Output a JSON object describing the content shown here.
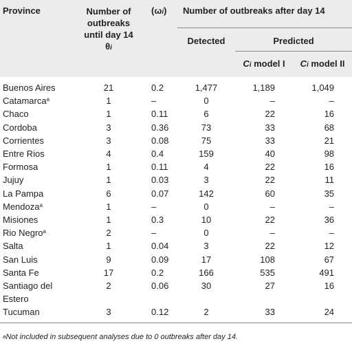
{
  "headers": {
    "province": "Province",
    "outbreaks_until": "Number of outbreaks until day 14",
    "theta": "θ",
    "theta_sub": "i",
    "omega": "(ω",
    "omega_sub": "i",
    "omega_close": ")",
    "after": "Number of outbreaks after day 14",
    "detected": "Detected",
    "predicted": "Predicted",
    "model1_c": "C",
    "model1_sub": "i",
    "model1_rest": " model I",
    "model2_c": "C",
    "model2_sub": "i",
    "model2_rest": " model II"
  },
  "rows": [
    {
      "province": "Buenos Aires",
      "sup": "",
      "until": "21",
      "omega": "0.2",
      "detected": "1,477",
      "m1": "1,189",
      "m2": "1,049"
    },
    {
      "province": "Catamarca",
      "sup": "a",
      "until": "1",
      "omega": "–",
      "detected": "0",
      "m1": "–",
      "m2": "–"
    },
    {
      "province": "Chaco",
      "sup": "",
      "until": "1",
      "omega": "0.11",
      "detected": "6",
      "m1": "22",
      "m2": "16"
    },
    {
      "province": "Cordoba",
      "sup": "",
      "until": "3",
      "omega": "0.36",
      "detected": "73",
      "m1": "33",
      "m2": "68"
    },
    {
      "province": "Corrientes",
      "sup": "",
      "until": "3",
      "omega": "0.08",
      "detected": "75",
      "m1": "33",
      "m2": "21"
    },
    {
      "province": "Entre Rios",
      "sup": "",
      "until": "4",
      "omega": "0.4",
      "detected": "159",
      "m1": "40",
      "m2": "98"
    },
    {
      "province": "Formosa",
      "sup": "",
      "until": "1",
      "omega": "0.11",
      "detected": "4",
      "m1": "22",
      "m2": "16"
    },
    {
      "province": "Jujuy",
      "sup": "",
      "until": "1",
      "omega": "0.03",
      "detected": "3",
      "m1": "22",
      "m2": "11"
    },
    {
      "province": "La Pampa",
      "sup": "",
      "until": "6",
      "omega": "0.07",
      "detected": "142",
      "m1": "60",
      "m2": "35"
    },
    {
      "province": "Mendoza",
      "sup": "a",
      "until": "1",
      "omega": "–",
      "detected": "0",
      "m1": "–",
      "m2": "–"
    },
    {
      "province": "Misiones",
      "sup": "",
      "until": "1",
      "omega": "0.3",
      "detected": "10",
      "m1": "22",
      "m2": "36"
    },
    {
      "province": "Rio Negro",
      "sup": "a",
      "until": "2",
      "omega": "–",
      "detected": "0",
      "m1": "–",
      "m2": "–"
    },
    {
      "province": "Salta",
      "sup": "",
      "until": "1",
      "omega": "0.04",
      "detected": "3",
      "m1": "22",
      "m2": "12"
    },
    {
      "province": "San Luis",
      "sup": "",
      "until": "9",
      "omega": "0.09",
      "detected": "17",
      "m1": "108",
      "m2": "67"
    },
    {
      "province": "Santa Fe",
      "sup": "",
      "until": "17",
      "omega": "0.2",
      "detected": "166",
      "m1": "535",
      "m2": "491"
    },
    {
      "province": "Santiago del",
      "sup": "",
      "until": "2",
      "omega": "0.06",
      "detected": "30",
      "m1": "27",
      "m2": "16"
    },
    {
      "province": "Estero",
      "sup": "",
      "until": "",
      "omega": "",
      "detected": "",
      "m1": "",
      "m2": ""
    },
    {
      "province": "Tucuman",
      "sup": "",
      "until": "3",
      "omega": "0.12",
      "detected": "2",
      "m1": "33",
      "m2": "24"
    }
  ],
  "footnote": {
    "sup": "a",
    "text": "Not included in subsequent analyses due to 0 outbreaks after day 14."
  }
}
